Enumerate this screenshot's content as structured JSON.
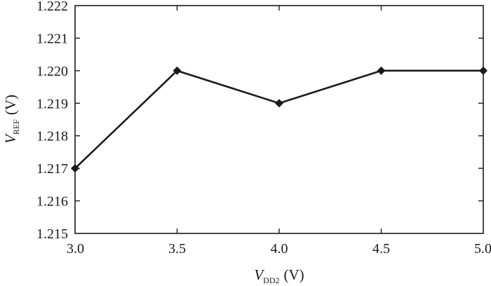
{
  "chart_data": {
    "type": "line",
    "x": [
      3.0,
      3.5,
      4.0,
      4.5,
      5.0
    ],
    "series": [
      {
        "values": [
          1.217,
          1.22,
          1.219,
          1.22,
          1.22
        ]
      }
    ],
    "xlim": [
      3.0,
      5.0
    ],
    "ylim": [
      1.215,
      1.222
    ],
    "x_ticks": [
      "3.0",
      "3.5",
      "4.0",
      "4.5",
      "5.0"
    ],
    "y_ticks": [
      "1.215",
      "1.216",
      "1.217",
      "1.218",
      "1.219",
      "1.220",
      "1.221",
      "1.222"
    ],
    "xlabel": {
      "symbol": "V",
      "subscript": "DD2",
      "unit": "(V)"
    },
    "ylabel": {
      "symbol": "V",
      "subscript": "REF",
      "unit": "(V)"
    },
    "grid": false,
    "marker": "diamond",
    "line_color": "#1a1a1a"
  }
}
